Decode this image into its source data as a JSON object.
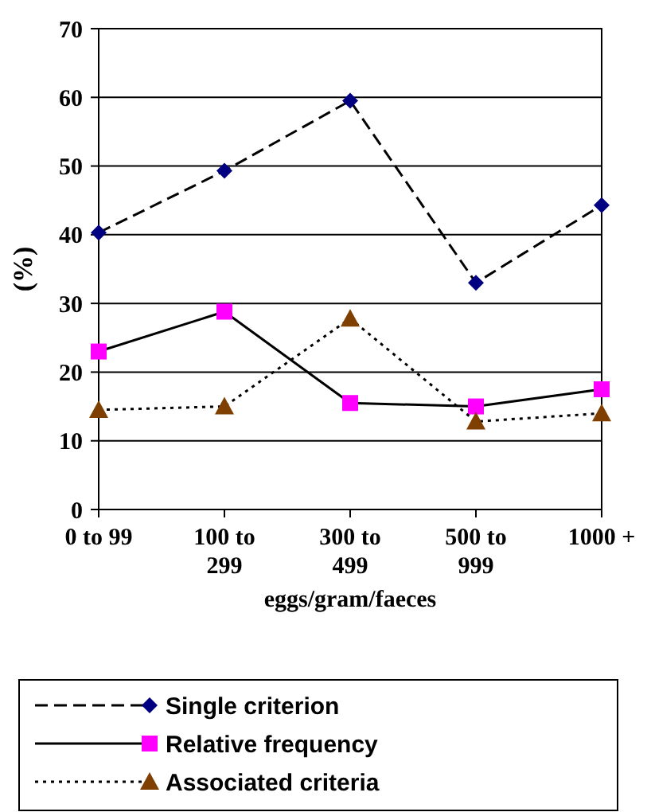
{
  "chart_data": {
    "type": "line",
    "ylabel": "(%)",
    "xlabel": "eggs/gram/faeces",
    "categories": [
      "0 to 99",
      "100 to 299",
      "300 to 499",
      "500 to 999",
      "1000 +"
    ],
    "ylim": [
      0,
      70
    ],
    "yticks": [
      0,
      10,
      20,
      30,
      40,
      50,
      60,
      70
    ],
    "grid": "y",
    "legend": "bottom",
    "series": [
      {
        "name": "Single criterion",
        "color": "#000080",
        "marker": "diamond",
        "line_style": "dashed",
        "values": [
          40.3,
          49.3,
          59.5,
          33,
          44.3
        ]
      },
      {
        "name": "Relative frequency",
        "color": "#ff00ff",
        "marker": "square",
        "line_style": "solid",
        "values": [
          23,
          28.8,
          15.5,
          15,
          17.5
        ]
      },
      {
        "name": "Associated criteria",
        "color": "#7f3f00",
        "marker": "triangle",
        "line_style": "dotted",
        "values": [
          14.5,
          15,
          27.8,
          12.8,
          14
        ]
      }
    ]
  }
}
